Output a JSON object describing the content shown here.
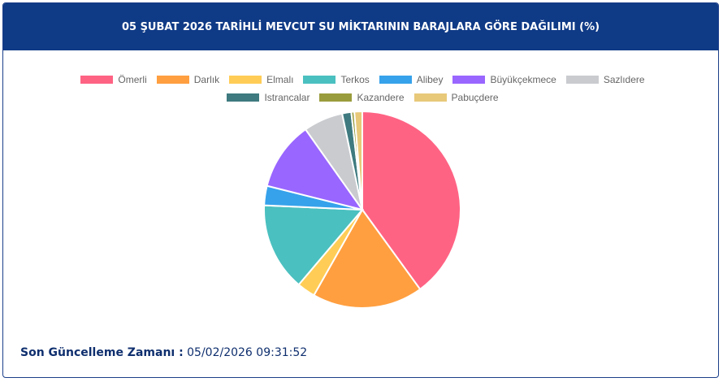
{
  "header": {
    "title": "05 ŞUBAT 2026 TARİHLİ MEVCUT SU MİKTARININ BARAJLARA GÖRE DAĞILIMI (%)"
  },
  "chart_data": {
    "type": "pie",
    "categories": [
      "Ömerli",
      "Darlık",
      "Elmalı",
      "Terkos",
      "Alibey",
      "Büyükçekmece",
      "Sazlıdere",
      "Istrancalar",
      "Kazandere",
      "Pabuçdere"
    ],
    "values": [
      40,
      18.2,
      3,
      14.5,
      3.2,
      11.3,
      6.5,
      1.5,
      0.5,
      1.3
    ],
    "colors": [
      "#ff6384",
      "#ff9f40",
      "#ffcd56",
      "#4bc0c0",
      "#36a2eb",
      "#9966ff",
      "#c9cbcf",
      "#3e7a7f",
      "#999c3c",
      "#e8c97a"
    ],
    "legend": "top"
  },
  "footer": {
    "label": "Son Güncelleme Zamanı :",
    "value": "05/02/2026 09:31:52"
  }
}
